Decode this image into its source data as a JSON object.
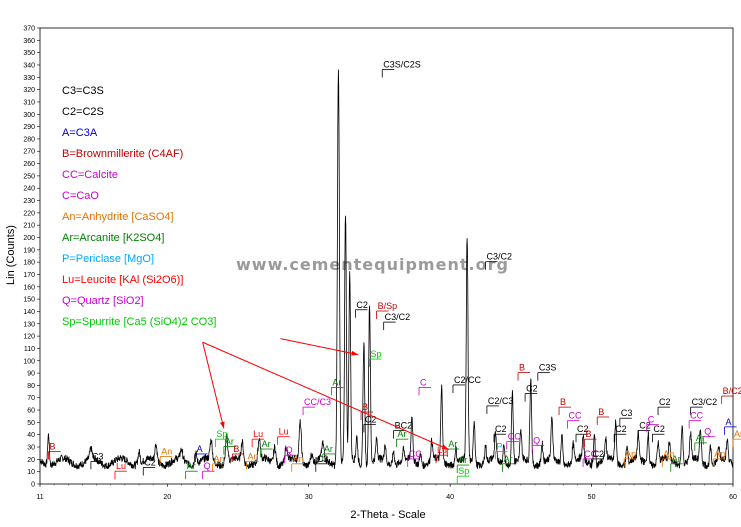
{
  "chart_data": {
    "type": "line",
    "xlabel": "2-Theta - Scale",
    "ylabel": "Lin (Counts)",
    "xlim": [
      11,
      60
    ],
    "ylim": [
      0,
      370
    ],
    "xticks": [
      11,
      20,
      30,
      40,
      50,
      60
    ],
    "yticks": [
      0,
      10,
      20,
      30,
      40,
      50,
      60,
      70,
      80,
      90,
      100,
      110,
      120,
      130,
      140,
      150,
      160,
      170,
      180,
      190,
      200,
      210,
      220,
      230,
      240,
      250,
      260,
      270,
      280,
      290,
      300,
      310,
      320,
      330,
      340,
      350,
      360,
      370
    ],
    "watermark": "www.cementequipment.org",
    "legend": [
      {
        "text": "C3=C3S",
        "color": "#000000"
      },
      {
        "text": "C2=C2S",
        "color": "#000000"
      },
      {
        "text": "A=C3A",
        "color": "#0000cc"
      },
      {
        "text": "B=Brownmillerite (C4AF)",
        "color": "#c00000"
      },
      {
        "text": "CC=Calcite",
        "color": "#cc00cc"
      },
      {
        "text": "C=CaO",
        "color": "#cc00cc"
      },
      {
        "text": "An=Anhydrite [CaSO4]",
        "color": "#e67300"
      },
      {
        "text": "Ar=Arcanite [K2SO4]",
        "color": "#008000"
      },
      {
        "text": "P=Periclase [MgO]",
        "color": "#00aaff"
      },
      {
        "text": "Lu=Leucite [KAl (Si2O6)]",
        "color": "#ff0000"
      },
      {
        "text": "Q=Quartz [SiO2]",
        "color": "#cc00cc"
      },
      {
        "text": "Sp=Spurrite [Ca5 (SiO4)2 CO3]",
        "color": "#00cc00"
      }
    ],
    "baseline": 18,
    "peaks": [
      [
        11.6,
        25,
        0.06
      ],
      [
        14.6,
        8,
        0.08
      ],
      [
        18.0,
        10,
        0.08
      ],
      [
        19.2,
        14,
        0.08
      ],
      [
        21.0,
        8,
        0.08
      ],
      [
        22.0,
        10,
        0.08
      ],
      [
        23.1,
        16,
        0.08
      ],
      [
        24.2,
        22,
        0.08
      ],
      [
        25.3,
        16,
        0.08
      ],
      [
        26.5,
        18,
        0.08
      ],
      [
        27.6,
        14,
        0.08
      ],
      [
        28.4,
        12,
        0.08
      ],
      [
        29.4,
        32,
        0.08
      ],
      [
        30.2,
        8,
        0.08
      ],
      [
        31.0,
        12,
        0.08
      ],
      [
        32.1,
        320,
        0.07
      ],
      [
        32.6,
        200,
        0.06
      ],
      [
        32.9,
        150,
        0.06
      ],
      [
        33.4,
        20,
        0.06
      ],
      [
        33.9,
        100,
        0.06
      ],
      [
        34.3,
        130,
        0.06
      ],
      [
        34.8,
        16,
        0.06
      ],
      [
        35.4,
        14,
        0.06
      ],
      [
        36.0,
        12,
        0.06
      ],
      [
        36.7,
        8,
        0.06
      ],
      [
        37.3,
        36,
        0.06
      ],
      [
        37.9,
        10,
        0.06
      ],
      [
        38.7,
        16,
        0.06
      ],
      [
        39.4,
        60,
        0.06
      ],
      [
        40.4,
        12,
        0.06
      ],
      [
        41.2,
        180,
        0.06
      ],
      [
        41.7,
        35,
        0.06
      ],
      [
        42.5,
        14,
        0.06
      ],
      [
        43.2,
        20,
        0.06
      ],
      [
        43.8,
        16,
        0.06
      ],
      [
        44.4,
        60,
        0.06
      ],
      [
        45.0,
        22,
        0.06
      ],
      [
        45.7,
        70,
        0.06
      ],
      [
        46.5,
        16,
        0.06
      ],
      [
        47.2,
        34,
        0.06
      ],
      [
        47.9,
        24,
        0.06
      ],
      [
        48.7,
        14,
        0.06
      ],
      [
        49.4,
        18,
        0.06
      ],
      [
        50.2,
        24,
        0.06
      ],
      [
        51.0,
        16,
        0.06
      ],
      [
        51.7,
        32,
        0.06
      ],
      [
        52.5,
        14,
        0.06
      ],
      [
        53.3,
        20,
        0.06
      ],
      [
        54.0,
        26,
        0.06
      ],
      [
        54.7,
        16,
        0.06
      ],
      [
        55.5,
        14,
        0.06
      ],
      [
        56.4,
        32,
        0.06
      ],
      [
        57.0,
        22,
        0.06
      ],
      [
        57.7,
        26,
        0.06
      ],
      [
        58.4,
        14,
        0.06
      ],
      [
        59.0,
        10,
        0.06
      ],
      [
        59.6,
        16,
        0.06
      ]
    ],
    "annotations": [
      {
        "text": "B",
        "x": 11.6,
        "y": 28,
        "color": "#c00000"
      },
      {
        "text": "C3",
        "x": 14.6,
        "y": 20,
        "color": "#000000"
      },
      {
        "text": "Lu",
        "x": 16.3,
        "y": 12,
        "color": "#ff0000"
      },
      {
        "text": "C2",
        "x": 18.3,
        "y": 15,
        "color": "#000000"
      },
      {
        "text": "An",
        "x": 19.5,
        "y": 24,
        "color": "#e67300"
      },
      {
        "text": "Ar",
        "x": 21.3,
        "y": 12,
        "color": "#008000"
      },
      {
        "text": "A",
        "x": 22.0,
        "y": 26,
        "color": "#0000cc"
      },
      {
        "text": "Q",
        "x": 22.5,
        "y": 12,
        "color": "#cc00cc"
      },
      {
        "text": "An",
        "x": 23.2,
        "y": 18,
        "color": "#e67300"
      },
      {
        "text": "Sp",
        "x": 23.4,
        "y": 38,
        "color": "#00cc00"
      },
      {
        "text": "Ar",
        "x": 24.0,
        "y": 32,
        "color": "#008000"
      },
      {
        "text": "B",
        "x": 24.6,
        "y": 26,
        "color": "#c00000"
      },
      {
        "text": "An",
        "x": 25.6,
        "y": 20,
        "color": "#e67300"
      },
      {
        "text": "Lu",
        "x": 26.0,
        "y": 38,
        "color": "#ff0000"
      },
      {
        "text": "Ar",
        "x": 26.6,
        "y": 30,
        "color": "#008000"
      },
      {
        "text": "Lu",
        "x": 27.8,
        "y": 40,
        "color": "#ff0000"
      },
      {
        "text": "Q",
        "x": 28.3,
        "y": 25,
        "color": "#cc00cc"
      },
      {
        "text": "An",
        "x": 28.8,
        "y": 18,
        "color": "#e67300"
      },
      {
        "text": "CC/C3",
        "x": 29.6,
        "y": 64,
        "color": "#cc00cc"
      },
      {
        "text": "C3",
        "x": 30.5,
        "y": 18,
        "color": "#000000"
      },
      {
        "text": "Ar",
        "x": 31.0,
        "y": 26,
        "color": "#008000"
      },
      {
        "text": "Ar",
        "x": 31.6,
        "y": 80,
        "color": "#008000"
      },
      {
        "text": "C3S/C2S",
        "x": 35.2,
        "y": 338,
        "color": "#000000"
      },
      {
        "text": "C2",
        "x": 33.3,
        "y": 143,
        "color": "#000000"
      },
      {
        "text": "B/Sp",
        "x": 34.8,
        "y": 142,
        "color": "#c00000"
      },
      {
        "text": "C3/C2",
        "x": 35.3,
        "y": 133,
        "color": "#000000"
      },
      {
        "text": "Sp",
        "x": 34.3,
        "y": 103,
        "color": "#00cc00"
      },
      {
        "text": "B",
        "x": 33.7,
        "y": 60,
        "color": "#c00000"
      },
      {
        "text": "C2",
        "x": 33.9,
        "y": 50,
        "color": "#000000"
      },
      {
        "text": "BC2",
        "x": 36.0,
        "y": 45,
        "color": "#000000"
      },
      {
        "text": "Ar",
        "x": 36.2,
        "y": 38,
        "color": "#008000"
      },
      {
        "text": "CC",
        "x": 37.0,
        "y": 22,
        "color": "#cc00cc"
      },
      {
        "text": "C",
        "x": 37.8,
        "y": 80,
        "color": "#cc00cc"
      },
      {
        "text": "Lu",
        "x": 39.0,
        "y": 25,
        "color": "#ff0000"
      },
      {
        "text": "Ar",
        "x": 39.8,
        "y": 30,
        "color": "#008000"
      },
      {
        "text": "C2/CC",
        "x": 40.2,
        "y": 82,
        "color": "#000000"
      },
      {
        "text": "Ar",
        "x": 40.5,
        "y": 17,
        "color": "#008000"
      },
      {
        "text": "Sp",
        "x": 40.5,
        "y": 8,
        "color": "#00cc00"
      },
      {
        "text": "C3/C2",
        "x": 42.5,
        "y": 182,
        "color": "#000000"
      },
      {
        "text": "C2/C3",
        "x": 42.6,
        "y": 65,
        "color": "#000000"
      },
      {
        "text": "C2",
        "x": 43.1,
        "y": 42,
        "color": "#000000"
      },
      {
        "text": "P",
        "x": 43.2,
        "y": 28,
        "color": "#00aaff"
      },
      {
        "text": "Ar",
        "x": 43.7,
        "y": 18,
        "color": "#008000"
      },
      {
        "text": "CC",
        "x": 44.0,
        "y": 36,
        "color": "#cc00cc"
      },
      {
        "text": "B",
        "x": 44.8,
        "y": 92,
        "color": "#c00000"
      },
      {
        "text": "C2",
        "x": 45.3,
        "y": 75,
        "color": "#000000"
      },
      {
        "text": "C3S",
        "x": 46.2,
        "y": 92,
        "color": "#000000"
      },
      {
        "text": "Q",
        "x": 45.8,
        "y": 33,
        "color": "#cc00cc"
      },
      {
        "text": "B",
        "x": 47.7,
        "y": 64,
        "color": "#c00000"
      },
      {
        "text": "CC",
        "x": 48.3,
        "y": 53,
        "color": "#cc00cc"
      },
      {
        "text": "C2",
        "x": 48.9,
        "y": 42,
        "color": "#000000"
      },
      {
        "text": "B",
        "x": 49.5,
        "y": 38,
        "color": "#c00000"
      },
      {
        "text": "CC",
        "x": 49.4,
        "y": 22,
        "color": "#cc00cc"
      },
      {
        "text": "C2",
        "x": 50.0,
        "y": 22,
        "color": "#000000"
      },
      {
        "text": "B",
        "x": 50.4,
        "y": 56,
        "color": "#c00000"
      },
      {
        "text": "C3",
        "x": 52.0,
        "y": 55,
        "color": "#000000"
      },
      {
        "text": "C2",
        "x": 51.6,
        "y": 42,
        "color": "#000000"
      },
      {
        "text": "An",
        "x": 52.3,
        "y": 22,
        "color": "#e67300"
      },
      {
        "text": "C2",
        "x": 53.3,
        "y": 45,
        "color": "#000000"
      },
      {
        "text": "C",
        "x": 53.9,
        "y": 50,
        "color": "#cc00cc"
      },
      {
        "text": "C2",
        "x": 54.3,
        "y": 42,
        "color": "#000000"
      },
      {
        "text": "C2",
        "x": 54.7,
        "y": 64,
        "color": "#000000"
      },
      {
        "text": "An",
        "x": 55.0,
        "y": 22,
        "color": "#e67300"
      },
      {
        "text": "Ar",
        "x": 55.6,
        "y": 18,
        "color": "#008000"
      },
      {
        "text": "C3/C2",
        "x": 57.0,
        "y": 64,
        "color": "#000000"
      },
      {
        "text": "CC",
        "x": 56.9,
        "y": 53,
        "color": "#cc00cc"
      },
      {
        "text": "Ar",
        "x": 57.3,
        "y": 35,
        "color": "#008000"
      },
      {
        "text": "Q",
        "x": 57.9,
        "y": 40,
        "color": "#cc00cc"
      },
      {
        "text": "An",
        "x": 58.6,
        "y": 22,
        "color": "#e67300"
      },
      {
        "text": "A",
        "x": 59.4,
        "y": 48,
        "color": "#0000cc"
      },
      {
        "text": "An",
        "x": 60.0,
        "y": 38,
        "color": "#e67300"
      },
      {
        "text": "B/C2",
        "x": 59.2,
        "y": 73,
        "color": "#c00000"
      }
    ],
    "arrows": [
      {
        "from": [
          28.0,
          118
        ],
        "to": [
          33.5,
          105
        ]
      },
      {
        "from": [
          22.5,
          115
        ],
        "to": [
          24.0,
          45
        ]
      },
      {
        "from": [
          22.5,
          115
        ],
        "to": [
          39.9,
          28
        ]
      }
    ]
  }
}
